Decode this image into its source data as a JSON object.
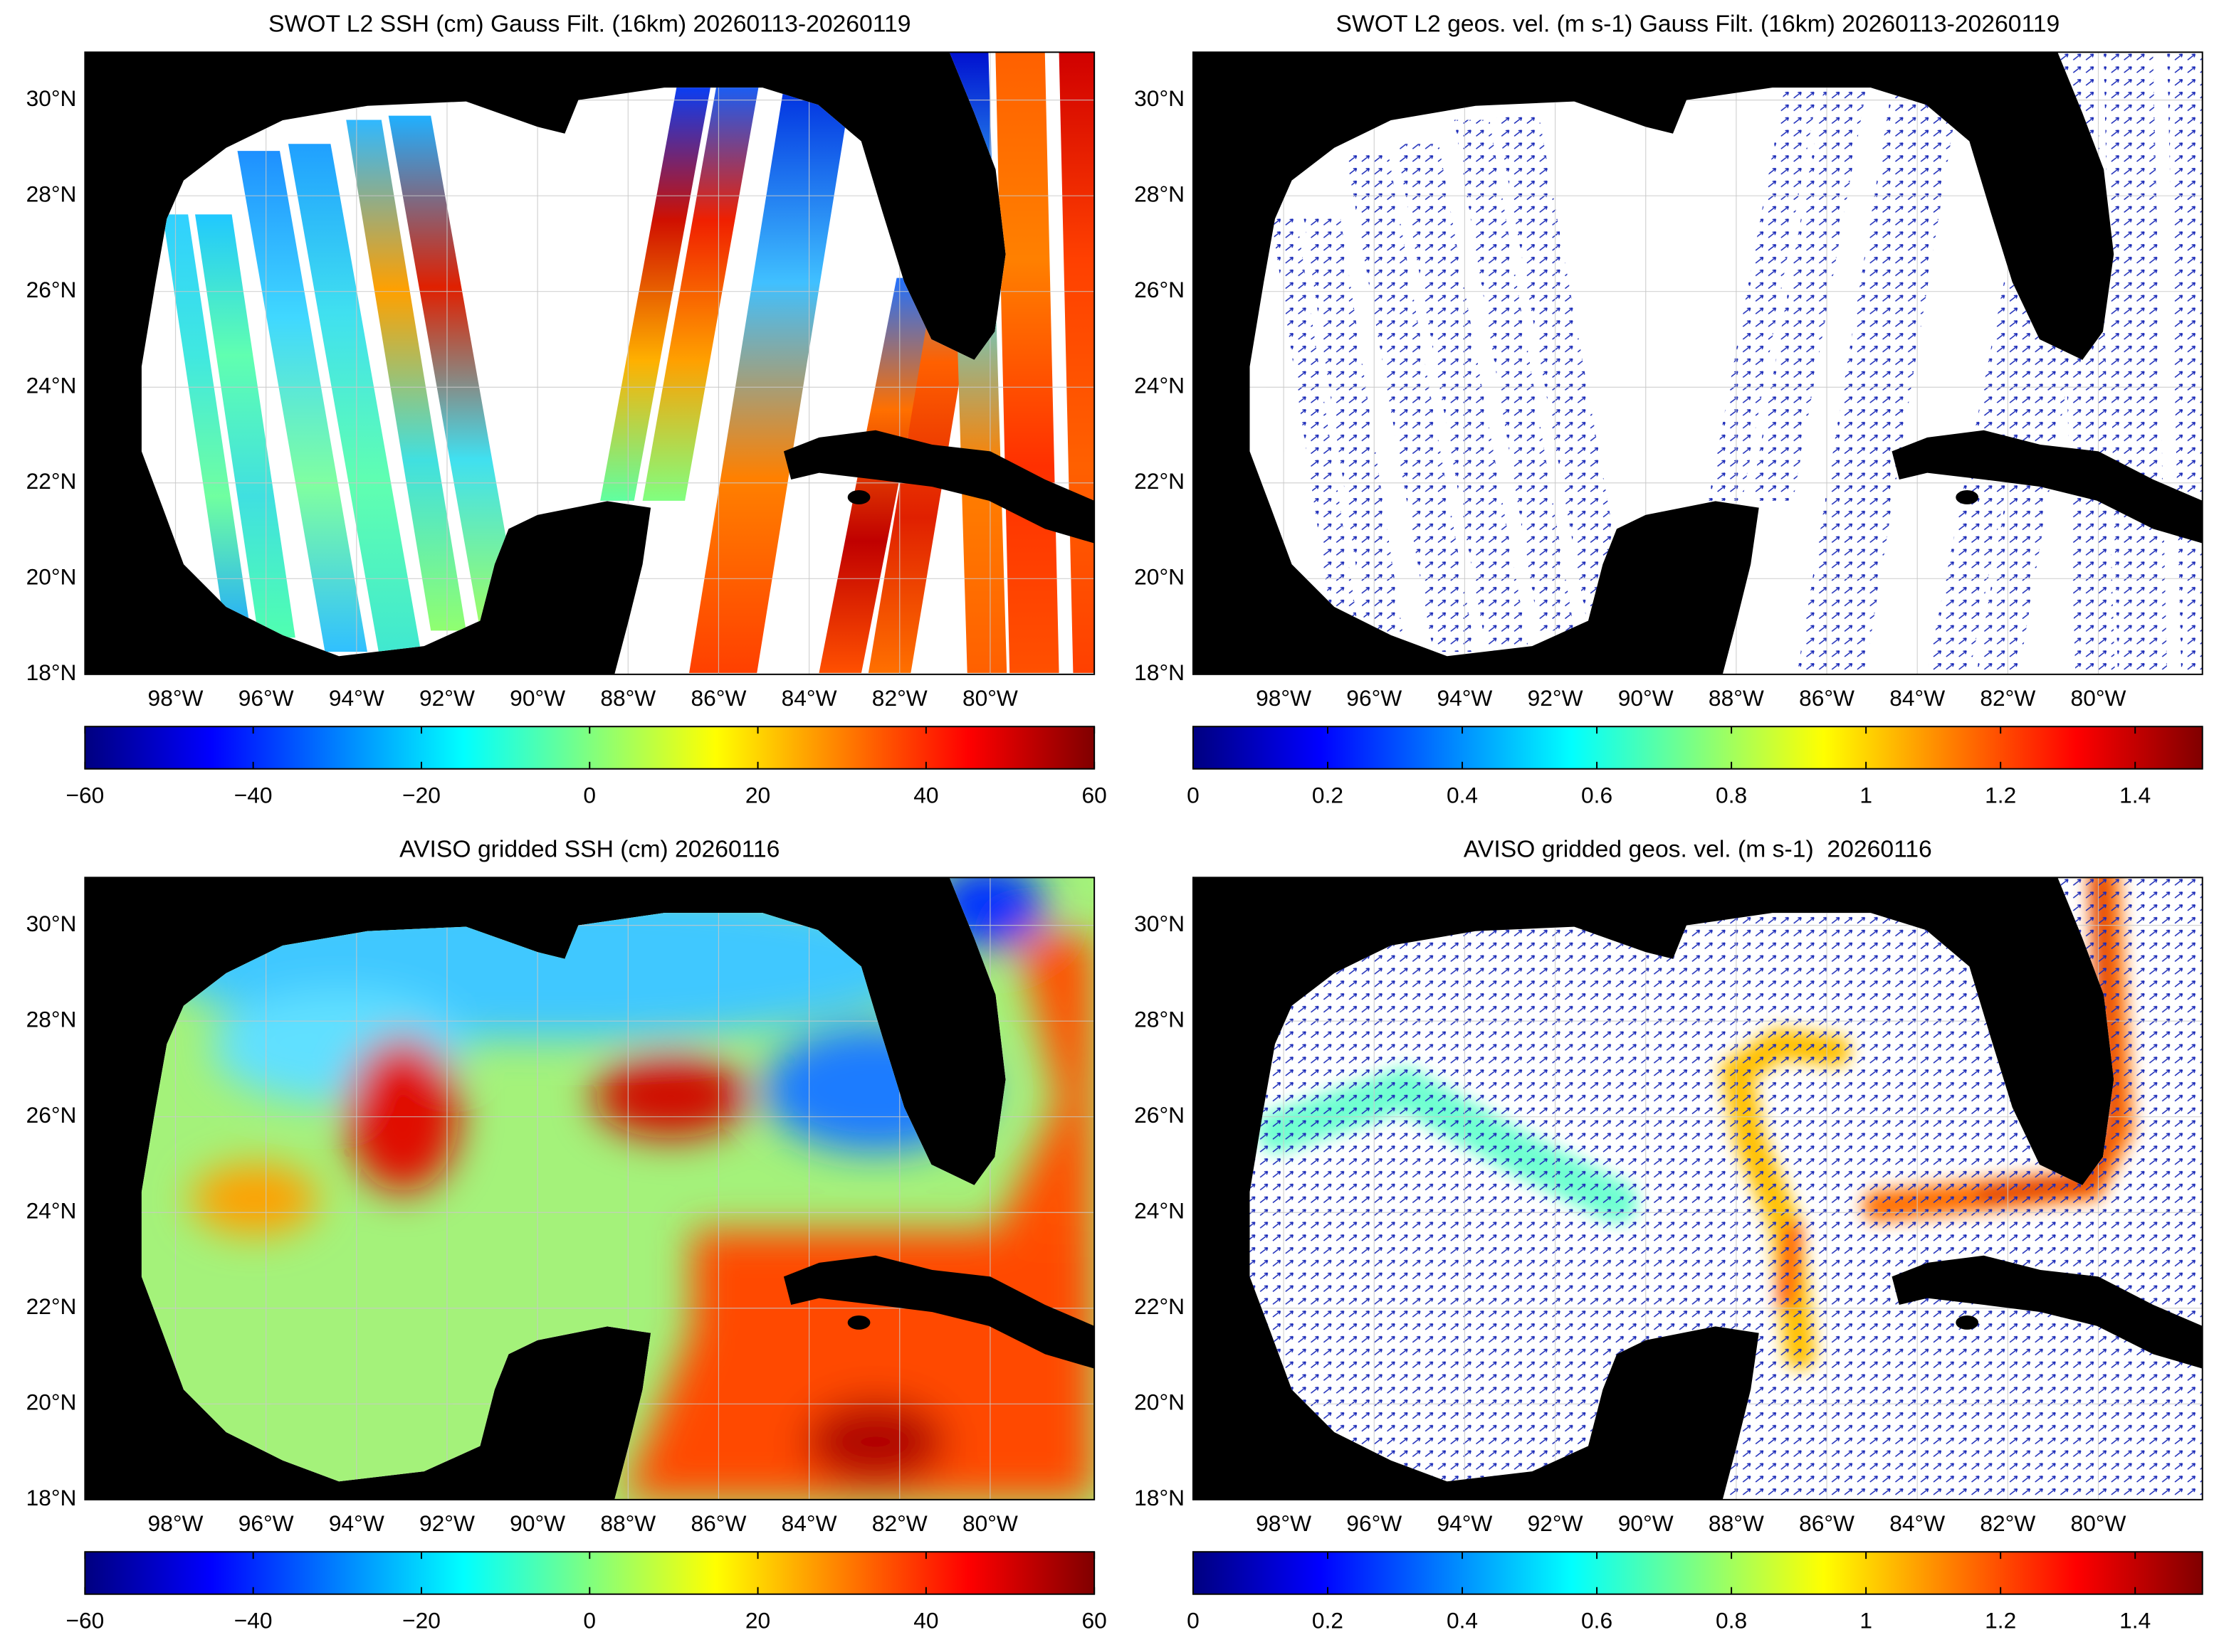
{
  "panels": [
    {
      "title": "SWOT L2 SSH (cm) Gauss Filt. (16km) 20260113-20260119",
      "xlim": [
        -100,
        -77.7
      ],
      "ylim": [
        18,
        31
      ],
      "xticks": [
        {
          "value": -98,
          "label": "98°W"
        },
        {
          "value": -96,
          "label": "96°W"
        },
        {
          "value": -94,
          "label": "94°W"
        },
        {
          "value": -92,
          "label": "92°W"
        },
        {
          "value": -90,
          "label": "90°W"
        },
        {
          "value": -88,
          "label": "88°W"
        },
        {
          "value": -86,
          "label": "86°W"
        },
        {
          "value": -84,
          "label": "84°W"
        },
        {
          "value": -82,
          "label": "82°W"
        },
        {
          "value": -80,
          "label": "80°W"
        }
      ],
      "yticks": [
        {
          "value": 18,
          "label": "18°N"
        },
        {
          "value": 20,
          "label": "20°N"
        },
        {
          "value": 22,
          "label": "22°N"
        },
        {
          "value": 24,
          "label": "24°N"
        },
        {
          "value": 26,
          "label": "26°N"
        },
        {
          "value": 28,
          "label": "28°N"
        },
        {
          "value": 30,
          "label": "30°N"
        }
      ],
      "colorbar": {
        "lim": [
          -60,
          60
        ],
        "ticks": [
          {
            "value": -60,
            "label": "−60"
          },
          {
            "value": -40,
            "label": "−40"
          },
          {
            "value": -20,
            "label": "−20"
          },
          0,
          20,
          40,
          60
        ]
      }
    },
    {
      "title": "SWOT L2 geos. vel. (m s-1) Gauss Filt. (16km) 20260113-20260119",
      "xlim": [
        -100,
        -77.7
      ],
      "ylim": [
        18,
        31
      ],
      "xticks": [
        {
          "value": -98,
          "label": "98°W"
        },
        {
          "value": -96,
          "label": "96°W"
        },
        {
          "value": -94,
          "label": "94°W"
        },
        {
          "value": -92,
          "label": "92°W"
        },
        {
          "value": -90,
          "label": "90°W"
        },
        {
          "value": -88,
          "label": "88°W"
        },
        {
          "value": -86,
          "label": "86°W"
        },
        {
          "value": -84,
          "label": "84°W"
        },
        {
          "value": -82,
          "label": "82°W"
        },
        {
          "value": -80,
          "label": "80°W"
        }
      ],
      "yticks": [
        {
          "value": 18,
          "label": "18°N"
        },
        {
          "value": 20,
          "label": "20°N"
        },
        {
          "value": 22,
          "label": "22°N"
        },
        {
          "value": 24,
          "label": "24°N"
        },
        {
          "value": 26,
          "label": "26°N"
        },
        {
          "value": 28,
          "label": "28°N"
        },
        {
          "value": 30,
          "label": "30°N"
        }
      ],
      "colorbar": {
        "lim": [
          0,
          1.5
        ],
        "ticks": [
          0,
          0.2,
          0.4,
          0.6,
          0.8,
          1,
          1.2,
          1.4
        ]
      }
    },
    {
      "title": "AVISO gridded SSH (cm) 20260116",
      "xlim": [
        -100,
        -77.7
      ],
      "ylim": [
        18,
        31
      ],
      "xticks": [
        {
          "value": -98,
          "label": "98°W"
        },
        {
          "value": -96,
          "label": "96°W"
        },
        {
          "value": -94,
          "label": "94°W"
        },
        {
          "value": -92,
          "label": "92°W"
        },
        {
          "value": -90,
          "label": "90°W"
        },
        {
          "value": -88,
          "label": "88°W"
        },
        {
          "value": -86,
          "label": "86°W"
        },
        {
          "value": -84,
          "label": "84°W"
        },
        {
          "value": -82,
          "label": "82°W"
        },
        {
          "value": -80,
          "label": "80°W"
        }
      ],
      "yticks": [
        {
          "value": 18,
          "label": "18°N"
        },
        {
          "value": 20,
          "label": "20°N"
        },
        {
          "value": 22,
          "label": "22°N"
        },
        {
          "value": 24,
          "label": "24°N"
        },
        {
          "value": 26,
          "label": "26°N"
        },
        {
          "value": 28,
          "label": "28°N"
        },
        {
          "value": 30,
          "label": "30°N"
        }
      ],
      "colorbar": {
        "lim": [
          -60,
          60
        ],
        "ticks": [
          {
            "value": -60,
            "label": "−60"
          },
          {
            "value": -40,
            "label": "−40"
          },
          {
            "value": -20,
            "label": "−20"
          },
          0,
          20,
          40,
          60
        ]
      }
    },
    {
      "title": "AVISO gridded geos. vel. (m s-1)  20260116",
      "xlim": [
        -100,
        -77.7
      ],
      "ylim": [
        18,
        31
      ],
      "xticks": [
        {
          "value": -98,
          "label": "98°W"
        },
        {
          "value": -96,
          "label": "96°W"
        },
        {
          "value": -94,
          "label": "94°W"
        },
        {
          "value": -92,
          "label": "92°W"
        },
        {
          "value": -90,
          "label": "90°W"
        },
        {
          "value": -88,
          "label": "88°W"
        },
        {
          "value": -86,
          "label": "86°W"
        },
        {
          "value": -84,
          "label": "84°W"
        },
        {
          "value": -82,
          "label": "82°W"
        },
        {
          "value": -80,
          "label": "80°W"
        }
      ],
      "yticks": [
        {
          "value": 18,
          "label": "18°N"
        },
        {
          "value": 20,
          "label": "20°N"
        },
        {
          "value": 22,
          "label": "22°N"
        },
        {
          "value": 24,
          "label": "24°N"
        },
        {
          "value": 26,
          "label": "26°N"
        },
        {
          "value": 28,
          "label": "28°N"
        },
        {
          "value": 30,
          "label": "30°N"
        }
      ],
      "colorbar": {
        "lim": [
          0,
          1.5
        ],
        "ticks": [
          0,
          0.2,
          0.4,
          0.6,
          0.8,
          1,
          1.2,
          1.4
        ]
      }
    }
  ]
}
